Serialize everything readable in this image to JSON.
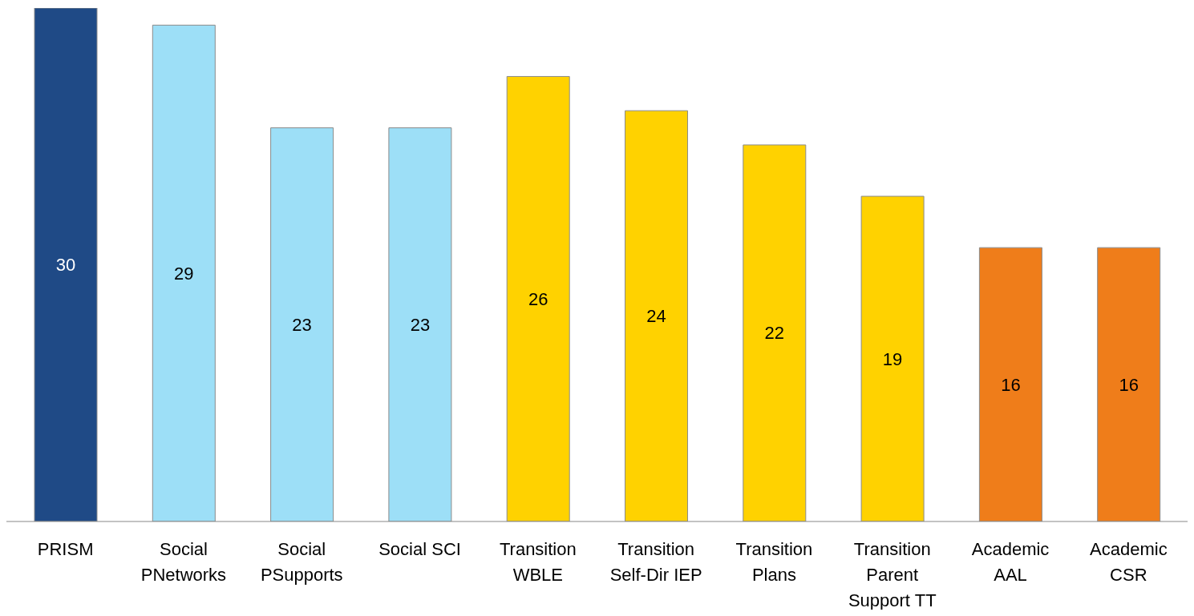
{
  "chart_data": {
    "type": "bar",
    "categories": [
      "PRISM",
      "Social PNetworks",
      "Social PSupports",
      "Social SCI",
      "Transition WBLE",
      "Transition Self-Dir IEP",
      "Transition Plans",
      "Transition Parent Support TT",
      "Academic AAL",
      "Academic CSR"
    ],
    "values": [
      30,
      29,
      23,
      23,
      26,
      24,
      22,
      19,
      16,
      16
    ],
    "colors": [
      "#1f4a86",
      "#9ddff7",
      "#9ddff7",
      "#9ddff7",
      "#ffd200",
      "#ffd200",
      "#ffd200",
      "#ffd200",
      "#ef7d1a",
      "#ef7d1a"
    ],
    "ylim": [
      0,
      30
    ],
    "data_labels": true,
    "tick_labels": "x"
  }
}
